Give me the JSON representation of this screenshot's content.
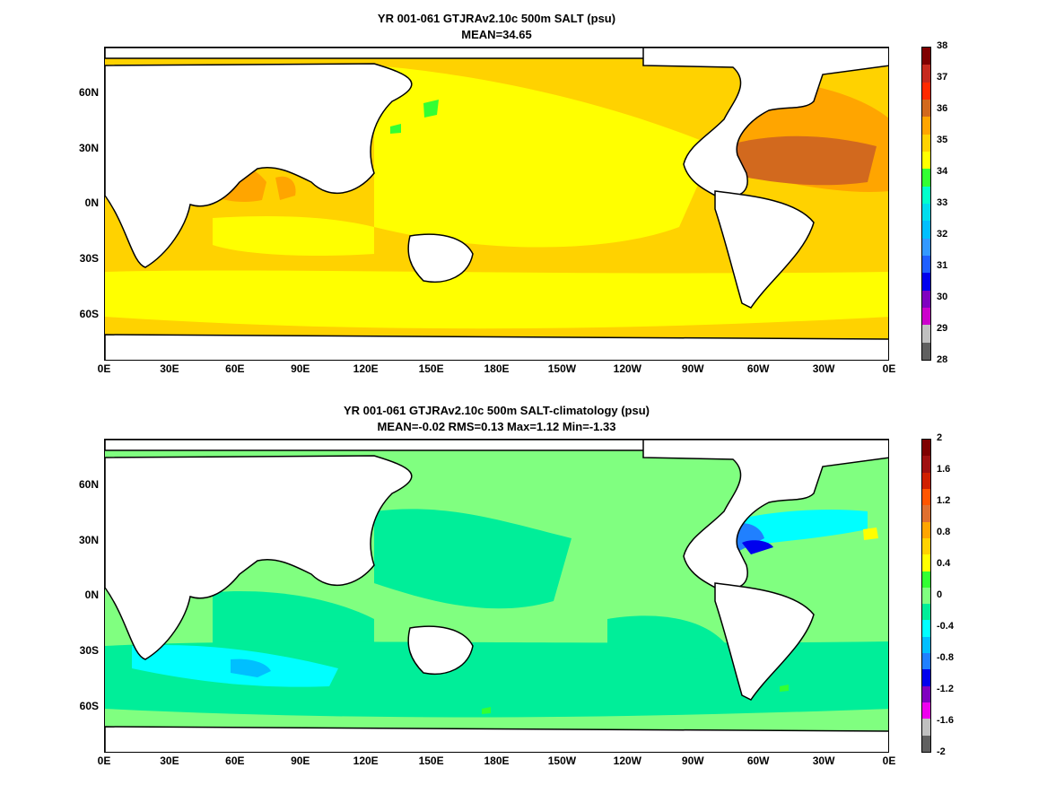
{
  "panels": [
    {
      "title_line1": "YR 001-061 GTJRAv2.10c 500m SALT (psu)",
      "title_line2": "MEAN=34.65",
      "colorbar_labels": [
        "38",
        "37",
        "36",
        "35",
        "34",
        "33",
        "32",
        "31",
        "30",
        "29",
        "28"
      ],
      "colorbar_colors": [
        "#7f0000",
        "#c62a1e",
        "#ff2a00",
        "#d2691e",
        "#ffa500",
        "#ffd200",
        "#ffff00",
        "#33ff33",
        "#00ffcc",
        "#00ddee",
        "#00bfff",
        "#3399ff",
        "#1f5fff",
        "#0000ee",
        "#8000c0",
        "#cc00cc",
        "#c0c0c0",
        "#606060"
      ],
      "ocean_base_color": "#ffd200"
    },
    {
      "title_line1": "YR 001-061 GTJRAv2.10c 500m SALT-climatology (psu)",
      "title_line2": "MEAN=-0.02   RMS=0.13   Max=1.12   Min=-1.33",
      "colorbar_labels": [
        "2",
        "1.6",
        "1.2",
        "0.8",
        "0.4",
        "0",
        "-0.4",
        "-0.8",
        "-1.2",
        "-1.6",
        "-2"
      ],
      "colorbar_colors": [
        "#7f0000",
        "#a01010",
        "#d02000",
        "#ff5500",
        "#e07030",
        "#ffa500",
        "#ffd200",
        "#ffff00",
        "#33ff33",
        "#80ff80",
        "#00ee99",
        "#00ffff",
        "#00bfff",
        "#2080ff",
        "#0000ee",
        "#8000c0",
        "#ee00ee",
        "#c0c0c0",
        "#606060"
      ],
      "ocean_base_color": "#80ff80"
    }
  ],
  "axes": {
    "y_labels": [
      "60N",
      "30N",
      "0N",
      "30S",
      "60S"
    ],
    "x_labels": [
      "0E",
      "30E",
      "60E",
      "90E",
      "120E",
      "150E",
      "180E",
      "150W",
      "120W",
      "90W",
      "60W",
      "30W",
      "0E"
    ]
  }
}
